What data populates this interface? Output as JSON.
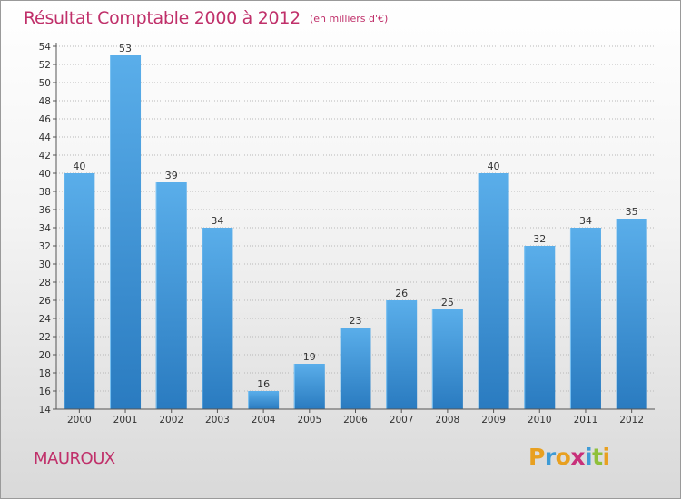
{
  "header": {
    "title": "Résultat Comptable 2000 à 2012",
    "unit": "(en milliers d'€)"
  },
  "footer": {
    "commune": "MAUROUX",
    "logo_text": "Proxiti",
    "logo_colors": [
      "#e8a020",
      "#3e9bd6",
      "#e8a020",
      "#c8307a",
      "#3e9bd6",
      "#8fc03a",
      "#e8a020"
    ]
  },
  "colors": {
    "bar_top": "#5aaeea",
    "bar_bottom": "#2a7bc0",
    "accent": "#c0306a",
    "axis": "#555555",
    "grid": "#b8b8b8"
  },
  "chart_data": {
    "type": "bar",
    "title": "Résultat Comptable 2000 à 2012",
    "subtitle": "(en milliers d'€)",
    "xlabel": "",
    "ylabel": "",
    "categories": [
      "2000",
      "2001",
      "2002",
      "2003",
      "2004",
      "2005",
      "2006",
      "2007",
      "2008",
      "2009",
      "2010",
      "2011",
      "2012"
    ],
    "values": [
      40,
      53,
      39,
      34,
      16,
      19,
      23,
      26,
      25,
      40,
      32,
      34,
      35
    ],
    "ylim": [
      14,
      54
    ],
    "ytick_step": 2,
    "grid": true
  }
}
